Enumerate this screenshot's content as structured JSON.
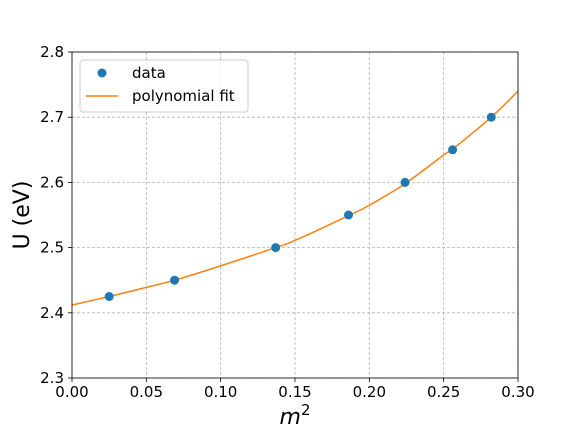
{
  "chart_data": {
    "type": "scatter",
    "xlabel_base": "m",
    "xlabel_exp": "2",
    "ylabel": "U (eV)",
    "xlim": [
      0.0,
      0.3
    ],
    "ylim": [
      2.3,
      2.8
    ],
    "xticks": [
      "0.00",
      "0.05",
      "0.10",
      "0.15",
      "0.20",
      "0.25",
      "0.30"
    ],
    "yticks": [
      "2.3",
      "2.4",
      "2.5",
      "2.6",
      "2.7",
      "2.8"
    ],
    "grid": true,
    "legend_position": "upper-left",
    "series": [
      {
        "name": "data",
        "kind": "scatter",
        "color": "#1f77b4",
        "x": [
          0.025,
          0.069,
          0.137,
          0.186,
          0.224,
          0.256,
          0.282
        ],
        "y": [
          2.425,
          2.45,
          2.5,
          2.55,
          2.6,
          2.65,
          2.7
        ]
      },
      {
        "name": "polynomial fit",
        "kind": "line",
        "color": "#ff7f0e",
        "x": [
          0.0,
          0.025,
          0.05,
          0.069,
          0.1,
          0.137,
          0.15,
          0.186,
          0.2,
          0.224,
          0.25,
          0.256,
          0.282,
          0.3
        ],
        "y": [
          2.412,
          2.425,
          2.439,
          2.45,
          2.472,
          2.5,
          2.511,
          2.549,
          2.565,
          2.598,
          2.642,
          2.651,
          2.7,
          2.74
        ]
      }
    ]
  }
}
